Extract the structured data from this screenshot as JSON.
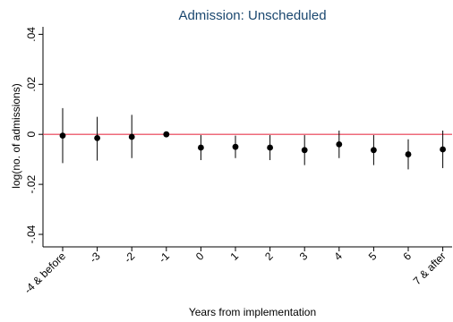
{
  "chart_data": {
    "type": "scatter",
    "title": "Admission: Unscheduled",
    "xlabel": "Years from implementation",
    "ylabel": "log(no. of admissions)",
    "ylim": [
      -0.045,
      0.043
    ],
    "yticks": [
      {
        "value": 0.04,
        "label": ".04"
      },
      {
        "value": 0.02,
        "label": ".02"
      },
      {
        "value": 0,
        "label": "0"
      },
      {
        "value": -0.02,
        "label": "-.02"
      },
      {
        "value": -0.04,
        "label": "-.04"
      }
    ],
    "categories": [
      "-4 & before",
      "-3",
      "-2",
      "-1",
      "0",
      "1",
      "2",
      "3",
      "4",
      "5",
      "6",
      "7 & after"
    ],
    "estimates": [
      -0.0005,
      -0.0015,
      -0.001,
      0.0,
      -0.0053,
      -0.005,
      -0.0053,
      -0.0063,
      -0.004,
      -0.0063,
      -0.008,
      -0.006
    ],
    "ci_lower": [
      -0.0115,
      -0.0105,
      -0.0095,
      0.0,
      -0.0103,
      -0.0095,
      -0.0103,
      -0.0123,
      -0.0095,
      -0.0123,
      -0.014,
      -0.0135
    ],
    "ci_upper": [
      0.0105,
      0.007,
      0.0078,
      0.0,
      -0.0003,
      -0.0005,
      -0.0003,
      -0.0003,
      0.0015,
      -0.0003,
      -0.002,
      0.0015
    ],
    "reference_line": {
      "y": 0,
      "color": "#e8384f"
    },
    "marker_color": "#000000",
    "grid": false
  }
}
